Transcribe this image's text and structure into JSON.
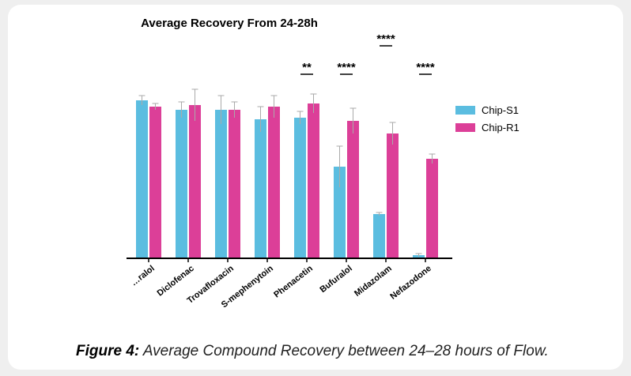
{
  "caption": {
    "label": "Figure 4:",
    "text": "Average Compound Recovery between 24–28 hours of Flow."
  },
  "chart_data": {
    "type": "bar",
    "title": "Average Recovery From 24-28h",
    "xlabel": "",
    "ylabel": "",
    "ylim": [
      0,
      1.1
    ],
    "categories": [
      "Propranolol",
      "Diclofenac",
      "Trovafloxacin",
      "S-mephenytoin",
      "Phenacetin",
      "Bufuralol",
      "Midazolam",
      "Nefazodone"
    ],
    "category_labels_visible": [
      "…ralol",
      "Diclofenac",
      "Trovafloxacin",
      "S-mephenytoin",
      "Phenacetin",
      "Bufuralol",
      "Midazolam",
      "Nefazodone"
    ],
    "series": [
      {
        "name": "Chip-S1",
        "color": "#5bbde0",
        "values": [
          1.0,
          0.94,
          0.94,
          0.88,
          0.89,
          0.58,
          0.28,
          0.02
        ],
        "errors": [
          0.03,
          0.05,
          0.09,
          0.08,
          0.04,
          0.13,
          0.01,
          0.01
        ]
      },
      {
        "name": "Chip-R1",
        "color": "#dc3f98",
        "values": [
          0.96,
          0.97,
          0.94,
          0.96,
          0.98,
          0.87,
          0.79,
          0.63
        ],
        "errors": [
          0.02,
          0.1,
          0.05,
          0.07,
          0.06,
          0.08,
          0.07,
          0.03
        ]
      }
    ],
    "significance": [
      {
        "category": "Phenacetin",
        "label": "**"
      },
      {
        "category": "Bufuralol",
        "label": "****"
      },
      {
        "category": "Midazolam",
        "label": "****"
      },
      {
        "category": "Nefazodone",
        "label": "****"
      }
    ],
    "legend_position": "right",
    "grid": false
  }
}
